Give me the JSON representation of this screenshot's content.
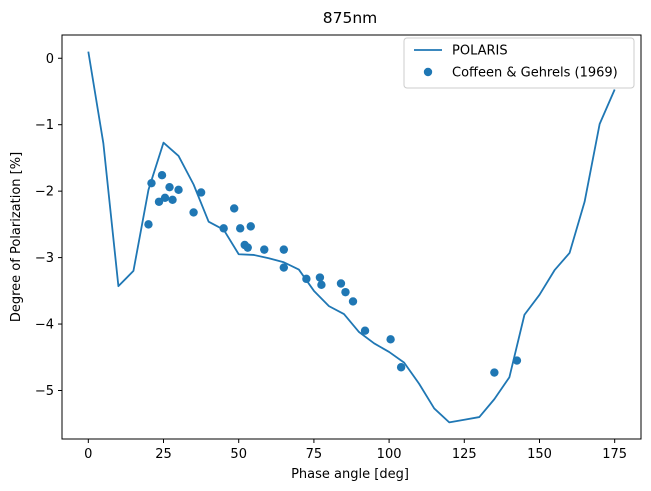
{
  "chart_data": {
    "type": "line+scatter",
    "title": "875nm",
    "xlabel": "Phase angle [deg]",
    "ylabel": "Degree of Polarization [%]",
    "xlim": [
      -8.75,
      183.75
    ],
    "ylim": [
      -5.73,
      0.35
    ],
    "xticks": [
      0,
      25,
      50,
      75,
      100,
      125,
      150,
      175
    ],
    "yticks": [
      0,
      -1,
      -2,
      -3,
      -4,
      -5
    ],
    "xtick_labels": [
      "0",
      "25",
      "50",
      "75",
      "100",
      "125",
      "150",
      "175"
    ],
    "ytick_labels": [
      "0",
      "−1",
      "−2",
      "−3",
      "−4",
      "−5"
    ],
    "legend_position": "upper right",
    "series": [
      {
        "name": "POLARIS",
        "type": "line",
        "color": "#1f77b4",
        "x": [
          0,
          5,
          10,
          15,
          20,
          25,
          30,
          35,
          40,
          45,
          50,
          55,
          60,
          65,
          70,
          75,
          80,
          85,
          90,
          95,
          100,
          105,
          110,
          115,
          120,
          125,
          130,
          135,
          140,
          145,
          150,
          155,
          160,
          165,
          170,
          175
        ],
        "y": [
          0.1,
          -1.28,
          -3.43,
          -3.2,
          -1.98,
          -1.27,
          -1.47,
          -1.9,
          -2.46,
          -2.58,
          -2.95,
          -2.96,
          -3.01,
          -3.07,
          -3.18,
          -3.5,
          -3.73,
          -3.85,
          -4.12,
          -4.29,
          -4.42,
          -4.58,
          -4.9,
          -5.27,
          -5.48,
          -5.44,
          -5.4,
          -5.13,
          -4.8,
          -3.86,
          -3.56,
          -3.19,
          -2.93,
          -2.16,
          -0.99,
          -0.47
        ]
      },
      {
        "name": "Coffeen & Gehrels (1969)",
        "type": "scatter",
        "color": "#1f77b4",
        "x": [
          20,
          21,
          23.5,
          24.5,
          25.5,
          27,
          28,
          30,
          35,
          37.5,
          45,
          48.5,
          50.5,
          52,
          53,
          54,
          58.5,
          65,
          65,
          72.5,
          77,
          77.5,
          84,
          85.5,
          88,
          92,
          100.5,
          104,
          135,
          142.5
        ],
        "y": [
          -2.5,
          -1.88,
          -2.16,
          -1.76,
          -2.1,
          -1.94,
          -2.13,
          -1.98,
          -2.32,
          -2.02,
          -2.56,
          -2.26,
          -2.56,
          -2.81,
          -2.85,
          -2.53,
          -2.88,
          -2.88,
          -3.15,
          -3.32,
          -3.3,
          -3.41,
          -3.39,
          -3.52,
          -3.66,
          -4.1,
          -4.23,
          -4.65,
          -4.73,
          -4.55
        ]
      }
    ]
  }
}
